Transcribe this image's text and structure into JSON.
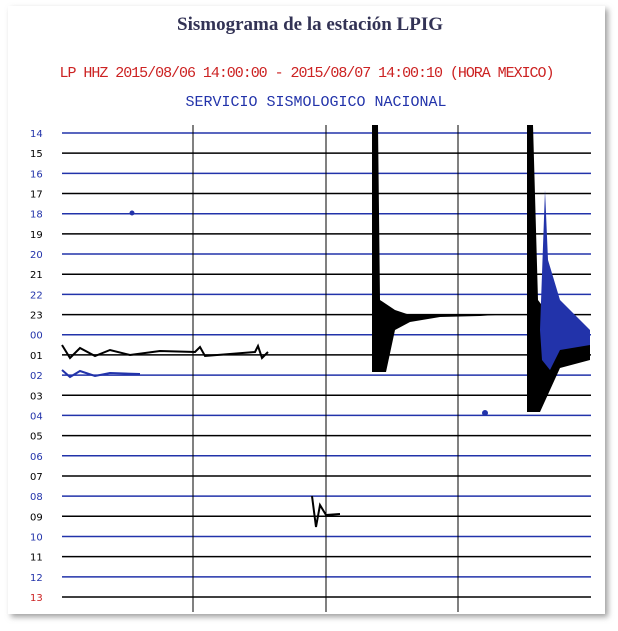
{
  "title": "Sismograma de la estación LPIG",
  "info": {
    "line1": "LP HHZ 2015/08/06 14:00:00 - 2015/08/07 14:00:10 (HORA MEXICO)",
    "line2": "SERVICIO SISMOLOGICO NACIONAL"
  },
  "rows": [
    {
      "label": "14",
      "color": "#2233aa"
    },
    {
      "label": "15",
      "color": "#000000"
    },
    {
      "label": "16",
      "color": "#2233aa"
    },
    {
      "label": "17",
      "color": "#000000"
    },
    {
      "label": "18",
      "color": "#2233aa"
    },
    {
      "label": "19",
      "color": "#000000"
    },
    {
      "label": "20",
      "color": "#2233aa"
    },
    {
      "label": "21",
      "color": "#000000"
    },
    {
      "label": "22",
      "color": "#2233aa"
    },
    {
      "label": "23",
      "color": "#000000"
    },
    {
      "label": "00",
      "color": "#2233aa"
    },
    {
      "label": "01",
      "color": "#000000"
    },
    {
      "label": "02",
      "color": "#2233aa"
    },
    {
      "label": "03",
      "color": "#000000"
    },
    {
      "label": "04",
      "color": "#2233aa"
    },
    {
      "label": "05",
      "color": "#000000"
    },
    {
      "label": "06",
      "color": "#2233aa"
    },
    {
      "label": "07",
      "color": "#000000"
    },
    {
      "label": "08",
      "color": "#2233aa"
    },
    {
      "label": "09",
      "color": "#000000"
    },
    {
      "label": "10",
      "color": "#2233aa"
    },
    {
      "label": "11",
      "color": "#000000"
    },
    {
      "label": "12",
      "color": "#2233aa"
    },
    {
      "label": "13",
      "color": "#cc2222"
    }
  ]
}
